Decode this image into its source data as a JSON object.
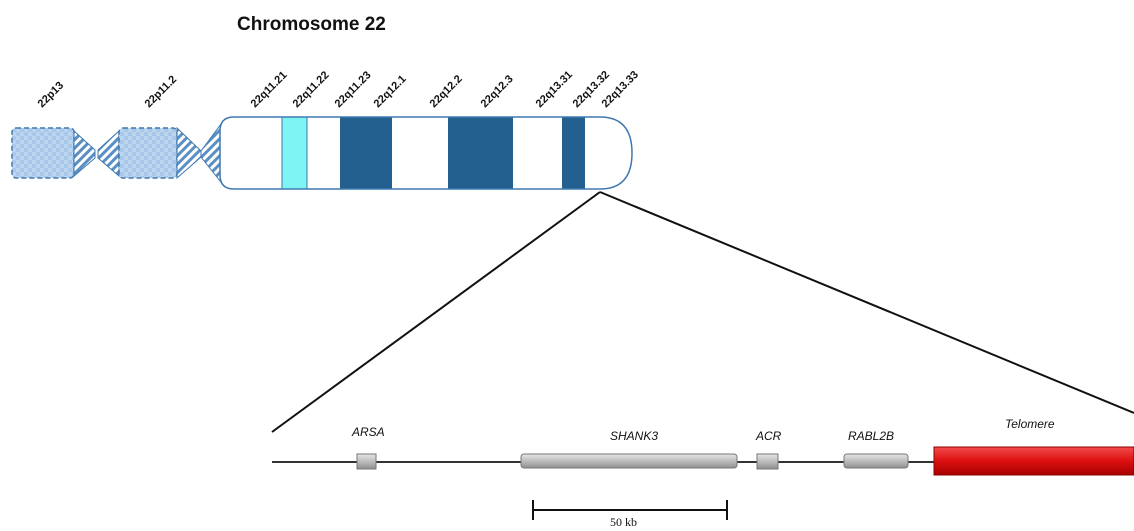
{
  "title": "Chromosome 22",
  "bands": [
    {
      "label": "22p13"
    },
    {
      "label": "22p11.2"
    },
    {
      "label": "22q11.21"
    },
    {
      "label": "22q11.22"
    },
    {
      "label": "22q11.23"
    },
    {
      "label": "22q12.1"
    },
    {
      "label": "22q12.2"
    },
    {
      "label": "22q12.3"
    },
    {
      "label": "22q13.31"
    },
    {
      "label": "22q13.32"
    },
    {
      "label": "22q13.33"
    }
  ],
  "genes": [
    {
      "label": "ARSA"
    },
    {
      "label": "SHANK3"
    },
    {
      "label": "ACR"
    },
    {
      "label": "RABL2B"
    },
    {
      "label": "Telomere"
    }
  ],
  "scale_bar": {
    "label": "50 kb"
  },
  "colors": {
    "dark_band": "#235f8f",
    "light_band": "#ffffff",
    "highlight_band": "#7ff4f4",
    "p_arm_fill": "#b9d3ee",
    "outline": "#3e79b0",
    "gene_fill": "#bfbfbf",
    "telomere": "#dd1010"
  }
}
